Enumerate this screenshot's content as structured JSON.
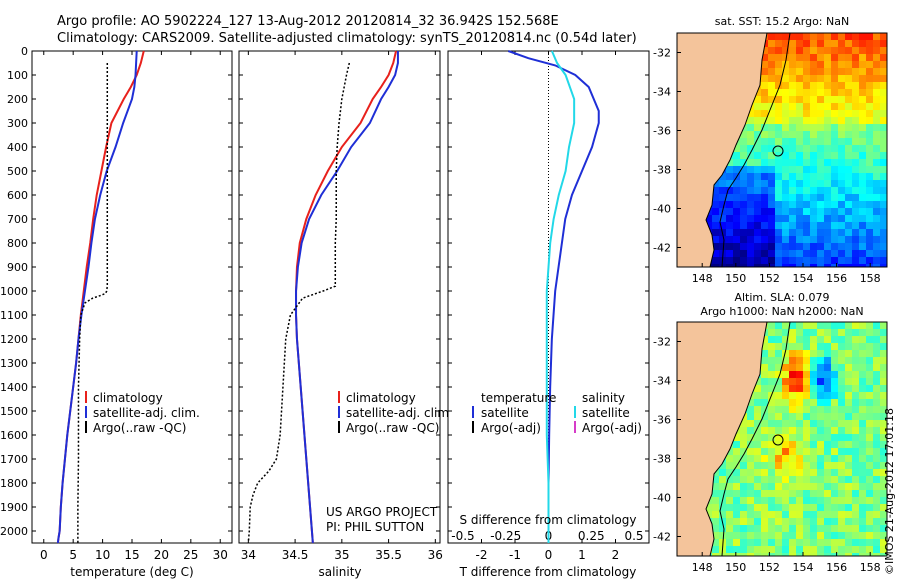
{
  "header": {
    "line1": "Argo profile: AO 5902224_127 13-Aug-2012 20120814_32 36.942S 152.568E",
    "line2": "Climatology: CARS2009. Satellite-adjusted climatology: synTS_20120814.nc (0.54d later)"
  },
  "colors": {
    "climatology": "#e8211c",
    "satellite": "#1f2fd6",
    "argo": "#000000",
    "satellite_s": "#22d8e8",
    "argo_s": "#d63cc8",
    "land": "#f4c49b",
    "coast": "#000000"
  },
  "chart_data": [
    {
      "type": "line",
      "xlabel": "temperature (deg C)",
      "xticks": [
        0,
        5,
        10,
        15,
        20,
        25,
        30
      ],
      "xlim": [
        -2,
        32
      ],
      "ylim": [
        2050,
        0
      ],
      "yticks": [
        0,
        100,
        200,
        300,
        400,
        500,
        600,
        700,
        800,
        900,
        1000,
        1100,
        1200,
        1300,
        1400,
        1500,
        1600,
        1700,
        1800,
        1900,
        2000
      ],
      "legend": [
        "climatology",
        "satellite-adj. clim.",
        "Argo(..raw -QC)"
      ],
      "series": [
        {
          "name": "climatology",
          "color": "#e8211c",
          "x": [
            17.0,
            16.5,
            15.8,
            14.8,
            13.6,
            11.5,
            10.6,
            9.8,
            9.0,
            8.4,
            7.9,
            7.3,
            6.8,
            6.3,
            5.9,
            5.5,
            5.0,
            4.5,
            4.0,
            3.6,
            3.2,
            2.9,
            2.7,
            2.5,
            2.4
          ],
          "y": [
            0,
            50,
            100,
            150,
            200,
            300,
            400,
            500,
            600,
            700,
            800,
            900,
            1000,
            1100,
            1200,
            1300,
            1400,
            1500,
            1600,
            1700,
            1800,
            1900,
            2000,
            2030,
            2050
          ]
        },
        {
          "name": "satellite-adj. clim.",
          "color": "#1f2fd6",
          "x": [
            15.8,
            15.7,
            15.6,
            15.4,
            15.0,
            13.5,
            12.2,
            10.7,
            9.6,
            8.7,
            8.1,
            7.6,
            7.0,
            6.4,
            5.9,
            5.5,
            5.0,
            4.5,
            4.0,
            3.6,
            3.2,
            2.9,
            2.7,
            2.5,
            2.4
          ],
          "y": [
            0,
            50,
            100,
            150,
            200,
            300,
            400,
            500,
            600,
            700,
            800,
            900,
            1000,
            1100,
            1200,
            1300,
            1400,
            1500,
            1600,
            1700,
            1800,
            1900,
            2000,
            2030,
            2050
          ]
        },
        {
          "name": "Argo(..raw -QC)",
          "color": "#000000",
          "dash": true,
          "x": [
            10.8,
            10.8,
            10.8,
            10.8,
            10.8,
            10.8,
            10.8,
            10.8,
            10.8,
            10.8,
            10.8,
            10.7,
            10.5,
            9.5,
            8.3,
            7.0,
            6.3,
            6.1,
            6.0,
            5.9,
            5.9,
            5.9,
            5.8,
            5.8,
            5.8
          ],
          "y": [
            50,
            100,
            200,
            300,
            400,
            500,
            600,
            700,
            800,
            900,
            980,
            1000,
            1010,
            1020,
            1030,
            1050,
            1100,
            1200,
            1300,
            1400,
            1500,
            1700,
            1900,
            2000,
            2050
          ]
        }
      ]
    },
    {
      "type": "line",
      "xlabel": "salinity",
      "xticks": [
        34,
        34.5,
        35,
        35.5,
        36
      ],
      "xticklabels": [
        "34",
        "34.5",
        "35",
        "35.5",
        "36"
      ],
      "xlim": [
        33.9,
        36.05
      ],
      "ylim": [
        2050,
        0
      ],
      "legend": [
        "climatology",
        "satellite-adj. clim.",
        "Argo(..raw -QC)"
      ],
      "annotations": [
        "US ARGO PROJECT",
        "PI: PHIL SUTTON"
      ],
      "series": [
        {
          "name": "climatology",
          "color": "#e8211c",
          "x": [
            35.58,
            35.55,
            35.5,
            35.42,
            35.33,
            35.2,
            35.0,
            34.85,
            34.72,
            34.62,
            34.55,
            34.52,
            34.51,
            34.51,
            34.52,
            34.54,
            34.56,
            34.58,
            34.6,
            34.62,
            34.64,
            34.66,
            34.68,
            34.69
          ],
          "y": [
            0,
            50,
            100,
            150,
            200,
            300,
            400,
            500,
            600,
            700,
            800,
            900,
            1000,
            1100,
            1200,
            1300,
            1400,
            1500,
            1600,
            1700,
            1800,
            1900,
            2000,
            2050
          ]
        },
        {
          "name": "satellite-adj. clim.",
          "color": "#1f2fd6",
          "x": [
            35.6,
            35.6,
            35.57,
            35.5,
            35.42,
            35.3,
            35.1,
            34.95,
            34.78,
            34.65,
            34.57,
            34.53,
            34.51,
            34.51,
            34.52,
            34.54,
            34.56,
            34.58,
            34.6,
            34.62,
            34.64,
            34.66,
            34.68,
            34.69
          ],
          "y": [
            0,
            50,
            100,
            150,
            200,
            300,
            400,
            500,
            600,
            700,
            800,
            900,
            1000,
            1100,
            1200,
            1300,
            1400,
            1500,
            1600,
            1700,
            1800,
            1900,
            2000,
            2050
          ]
        },
        {
          "name": "Argo(..raw -QC)",
          "color": "#000000",
          "dash": true,
          "x": [
            35.08,
            35.05,
            35.0,
            34.97,
            34.95,
            34.94,
            34.94,
            34.94,
            34.93,
            34.93,
            34.93,
            34.8,
            34.58,
            34.45,
            34.4,
            34.37,
            34.34,
            34.3,
            34.22,
            34.1,
            34.05,
            34.02,
            34.01,
            34.0
          ],
          "y": [
            50,
            100,
            200,
            300,
            400,
            500,
            600,
            700,
            800,
            900,
            980,
            1000,
            1030,
            1100,
            1200,
            1400,
            1600,
            1700,
            1750,
            1800,
            1850,
            1900,
            2000,
            2050
          ]
        }
      ]
    },
    {
      "type": "line",
      "xlabel": "T difference from climatology",
      "xlabel2": "S difference from climatology",
      "xticks": [
        -2,
        -1,
        0,
        1,
        2
      ],
      "xlim": [
        -3,
        3
      ],
      "xticks2": [
        -0.5,
        -0.25,
        0,
        0.25,
        0.5
      ],
      "xticklabels2": [
        "-0.5",
        "-0.25",
        "0",
        "0.25",
        "0.5"
      ],
      "ylim": [
        2050,
        0
      ],
      "legend_left_title": "temperature",
      "legend_left": [
        "satellite",
        "Argo(-adj)"
      ],
      "legend_right_title": "salinity",
      "legend_right": [
        "satellite",
        "Argo(-adj)"
      ],
      "series": [
        {
          "name": "satellite",
          "color": "#1f2fd6",
          "x": [
            -1.2,
            -0.6,
            0.2,
            0.8,
            1.2,
            1.5,
            1.5,
            1.3,
            1.0,
            0.7,
            0.5,
            0.4,
            0.3,
            0.2,
            0.1,
            0.05,
            0.02,
            0.0,
            0.0,
            0.0,
            0.0,
            0.0
          ],
          "y": [
            0,
            30,
            60,
            100,
            150,
            250,
            300,
            400,
            500,
            600,
            700,
            800,
            900,
            1000,
            1200,
            1400,
            1600,
            1800,
            1900,
            2000,
            2030,
            2050
          ]
        },
        {
          "name": "salinity satellite",
          "color": "#22d8e8",
          "x": [
            0.02,
            0.05,
            0.1,
            0.15,
            0.15,
            0.12,
            0.1,
            0.06,
            0.03,
            0.01,
            0.0,
            -0.01,
            -0.01,
            -0.01,
            -0.01,
            0.0,
            0.0
          ],
          "y": [
            0,
            50,
            100,
            200,
            300,
            400,
            500,
            600,
            700,
            800,
            900,
            1000,
            1200,
            1400,
            1600,
            1800,
            2050
          ]
        }
      ]
    },
    {
      "type": "heatmap",
      "title": "sat. SST: 15.2  Argo: NaN",
      "xticks": [
        148,
        150,
        152,
        154,
        156,
        158
      ],
      "yticks": [
        -32,
        -34,
        -36,
        -38,
        -40,
        -42
      ],
      "xlim": [
        146.5,
        159
      ],
      "ylim": [
        -43,
        -31
      ],
      "marker": {
        "lon": 152.57,
        "lat": -36.94
      }
    },
    {
      "type": "heatmap",
      "title_line1": "Altim. SLA: 0.079",
      "title_line2": "Argo h1000: NaN h2000: NaN",
      "xticks": [
        148,
        150,
        152,
        154,
        156,
        158
      ],
      "yticks": [
        -32,
        -34,
        -36,
        -38,
        -40,
        -42
      ],
      "xlim": [
        146.5,
        159
      ],
      "ylim": [
        -43,
        -31
      ],
      "marker": {
        "lon": 152.57,
        "lat": -36.94
      }
    }
  ],
  "credit": "©IMOS 21-Aug-2012 17:01:18"
}
